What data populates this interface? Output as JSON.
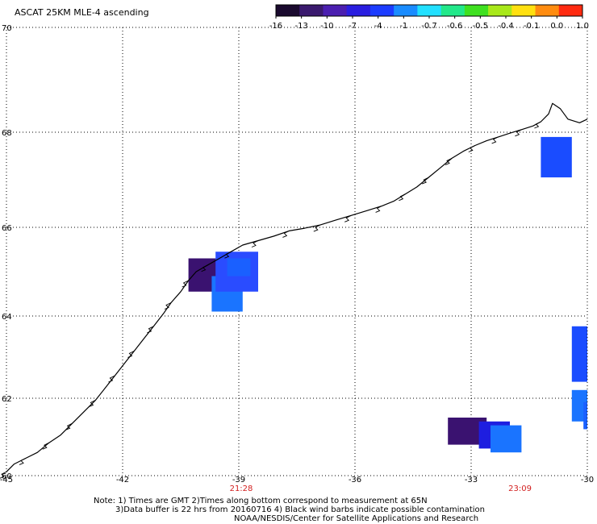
{
  "title": "ASCAT 25KM MLE-4 ascending",
  "colorbar": {
    "labels": [
      "-16",
      "-13",
      "-10",
      "-7",
      "-4",
      "-1",
      "-0.7",
      "-0.6",
      "-0.5",
      "-0.4",
      "-0.1",
      "0.0",
      "1.0"
    ],
    "colors": [
      "#1a0a2e",
      "#3a1a6e",
      "#4b1fb0",
      "#2a1ee0",
      "#1c3cff",
      "#1a8cff",
      "#22e0ff",
      "#22e88a",
      "#3fe020",
      "#a8e81a",
      "#ffe010",
      "#ff8c10",
      "#ff2a10"
    ]
  },
  "axes": {
    "lat_labels": [
      "70",
      "68",
      "66",
      "64",
      "62",
      "60"
    ],
    "lon_labels": [
      "-45",
      "-42",
      "-39",
      "-36",
      "-33",
      "-30"
    ]
  },
  "times": [
    "21:28",
    "23:09"
  ],
  "notes": {
    "line1": "Note: 1) Times are GMT 2)Times along bottom correspond to measurement at 65N",
    "line2": "3)Data buffer is 22 hrs from 20160716 4) Black wind barbs indicate possible contamination",
    "line3": "NOAA/NESDIS/Center for Satellite Applications and Research"
  },
  "data_cells": [
    {
      "lon_min": -40.3,
      "lon_max": -39.5,
      "lat_min": 64.55,
      "lat_max": 65.3,
      "color": "#3a1270"
    },
    {
      "lon_min": -39.7,
      "lon_max": -38.9,
      "lat_min": 64.1,
      "lat_max": 64.9,
      "color": "#1a74ff"
    },
    {
      "lon_min": -39.6,
      "lon_max": -38.5,
      "lat_min": 64.55,
      "lat_max": 65.45,
      "color": "#2a4cff"
    },
    {
      "lon_min": -39.3,
      "lon_max": -38.7,
      "lat_min": 64.9,
      "lat_max": 65.3,
      "color": "#1a60ff"
    },
    {
      "lon_min": -31.2,
      "lon_max": -30.4,
      "lat_min": 67.05,
      "lat_max": 67.9,
      "color": "#1a4cff"
    },
    {
      "lon_min": -33.6,
      "lon_max": -32.6,
      "lat_min": 60.8,
      "lat_max": 61.5,
      "color": "#3a1270"
    },
    {
      "lon_min": -32.8,
      "lon_max": -32.0,
      "lat_min": 60.7,
      "lat_max": 61.4,
      "color": "#1e1ee0"
    },
    {
      "lon_min": -32.5,
      "lon_max": -31.7,
      "lat_min": 60.6,
      "lat_max": 61.3,
      "color": "#1a74ff"
    },
    {
      "lon_min": -30.4,
      "lon_max": -30.0,
      "lat_min": 62.4,
      "lat_max": 63.75,
      "color": "#1a4cff"
    },
    {
      "lon_min": -30.4,
      "lon_max": -30.0,
      "lat_min": 61.4,
      "lat_max": 62.2,
      "color": "#1a74ff"
    },
    {
      "lon_min": -30.1,
      "lon_max": -30.0,
      "lat_min": 61.2,
      "lat_max": 61.9,
      "color": "#1a60ff"
    }
  ],
  "coastline": [
    [
      -45,
      60.1
    ],
    [
      -44.8,
      60.3
    ],
    [
      -44.5,
      60.45
    ],
    [
      -44.2,
      60.6
    ],
    [
      -43.9,
      60.85
    ],
    [
      -43.6,
      61.05
    ],
    [
      -43.3,
      61.35
    ],
    [
      -43.0,
      61.65
    ],
    [
      -42.7,
      61.95
    ],
    [
      -42.45,
      62.25
    ],
    [
      -42.2,
      62.55
    ],
    [
      -41.95,
      62.85
    ],
    [
      -41.7,
      63.15
    ],
    [
      -41.45,
      63.45
    ],
    [
      -41.2,
      63.75
    ],
    [
      -40.95,
      64.05
    ],
    [
      -40.75,
      64.3
    ],
    [
      -40.5,
      64.55
    ],
    [
      -40.3,
      64.8
    ],
    [
      -40.1,
      65.0
    ],
    [
      -39.8,
      65.15
    ],
    [
      -39.5,
      65.3
    ],
    [
      -39.2,
      65.45
    ],
    [
      -38.9,
      65.6
    ],
    [
      -38.5,
      65.7
    ],
    [
      -38.1,
      65.8
    ],
    [
      -37.7,
      65.92
    ],
    [
      -37.3,
      65.98
    ],
    [
      -36.9,
      66.05
    ],
    [
      -36.5,
      66.15
    ],
    [
      -36.1,
      66.25
    ],
    [
      -35.7,
      66.35
    ],
    [
      -35.3,
      66.45
    ],
    [
      -35.0,
      66.55
    ],
    [
      -34.7,
      66.7
    ],
    [
      -34.4,
      66.85
    ],
    [
      -34.1,
      67.05
    ],
    [
      -33.8,
      67.25
    ],
    [
      -33.5,
      67.45
    ],
    [
      -33.2,
      67.6
    ],
    [
      -32.9,
      67.72
    ],
    [
      -32.6,
      67.82
    ],
    [
      -32.3,
      67.9
    ],
    [
      -32.0,
      67.98
    ],
    [
      -31.7,
      68.05
    ],
    [
      -31.4,
      68.12
    ],
    [
      -31.2,
      68.2
    ],
    [
      -31.0,
      68.35
    ],
    [
      -30.9,
      68.55
    ],
    [
      -30.7,
      68.45
    ],
    [
      -30.5,
      68.25
    ],
    [
      -30.2,
      68.18
    ],
    [
      -30.0,
      68.25
    ]
  ]
}
